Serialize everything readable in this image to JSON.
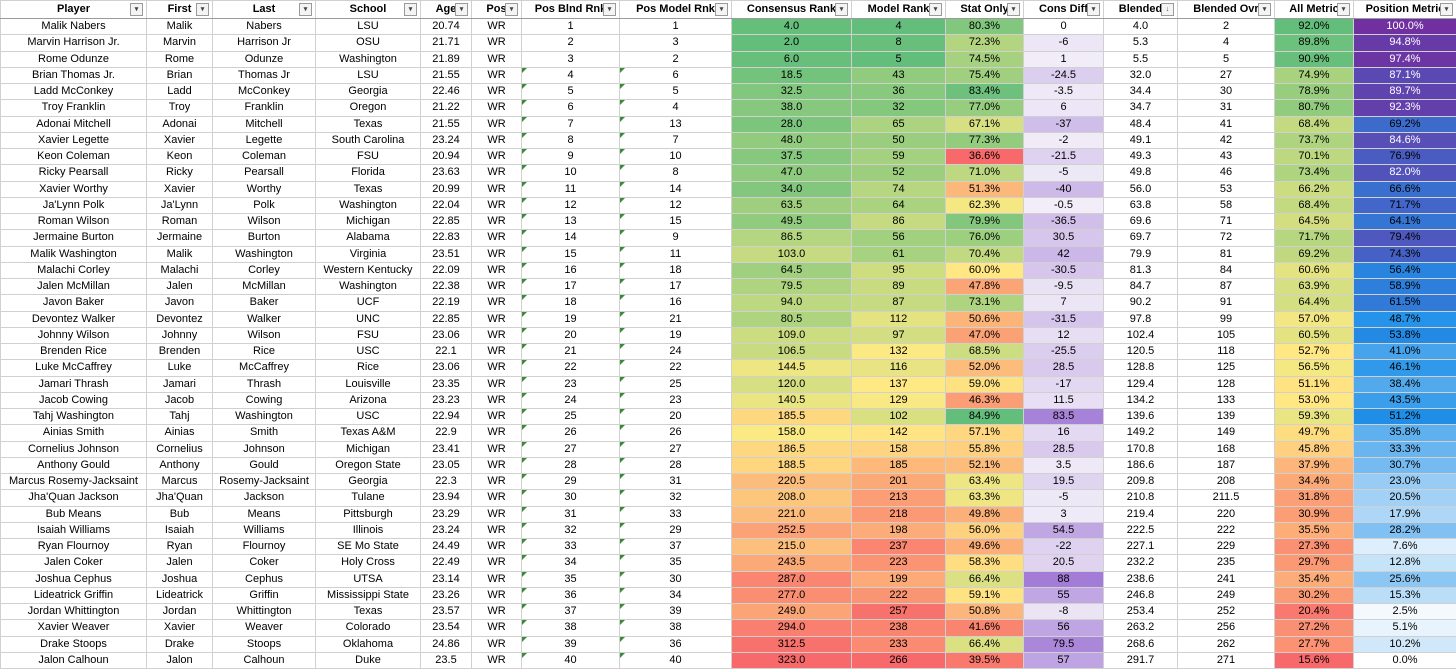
{
  "columns": [
    {
      "key": "player",
      "label": "Player"
    },
    {
      "key": "first",
      "label": "First"
    },
    {
      "key": "last",
      "label": "Last"
    },
    {
      "key": "school",
      "label": "School"
    },
    {
      "key": "age",
      "label": "Age"
    },
    {
      "key": "pos",
      "label": "Pos"
    },
    {
      "key": "pos_blnd_rnk",
      "label": "Pos Blnd Rnk"
    },
    {
      "key": "pos_model_rnk",
      "label": "Pos Model Rnk"
    },
    {
      "key": "consensus_rank",
      "label": "Consensus Rank"
    },
    {
      "key": "model_rank",
      "label": "Model Rank"
    },
    {
      "key": "stat_only",
      "label": "Stat Only"
    },
    {
      "key": "cons_diff",
      "label": "Cons Diff"
    },
    {
      "key": "blended",
      "label": "Blended"
    },
    {
      "key": "blended_ovr",
      "label": "Blended Ovr"
    },
    {
      "key": "all_metric",
      "label": "All Metric"
    },
    {
      "key": "position_metric",
      "label": "Position Metric"
    }
  ],
  "rows": [
    [
      "Malik Nabers",
      "Malik",
      "Nabers",
      "LSU",
      "20.74",
      "WR",
      "1",
      "1",
      "4.0",
      "4",
      "80.3%",
      "0",
      "4.0",
      "2",
      "92.0%",
      "100.0%"
    ],
    [
      "Marvin Harrison Jr.",
      "Marvin",
      "Harrison Jr",
      "OSU",
      "21.71",
      "WR",
      "2",
      "3",
      "2.0",
      "8",
      "72.3%",
      "-6",
      "5.3",
      "4",
      "89.8%",
      "94.8%"
    ],
    [
      "Rome Odunze",
      "Rome",
      "Odunze",
      "Washington",
      "21.89",
      "WR",
      "3",
      "2",
      "6.0",
      "5",
      "74.5%",
      "1",
      "5.5",
      "5",
      "90.9%",
      "97.4%"
    ],
    [
      "Brian Thomas Jr.",
      "Brian",
      "Thomas Jr",
      "LSU",
      "21.55",
      "WR",
      "4",
      "6",
      "18.5",
      "43",
      "75.4%",
      "-24.5",
      "32.0",
      "27",
      "74.9%",
      "87.1%"
    ],
    [
      "Ladd McConkey",
      "Ladd",
      "McConkey",
      "Georgia",
      "22.46",
      "WR",
      "5",
      "5",
      "32.5",
      "36",
      "83.4%",
      "-3.5",
      "34.4",
      "30",
      "78.9%",
      "89.7%"
    ],
    [
      "Troy Franklin",
      "Troy",
      "Franklin",
      "Oregon",
      "21.22",
      "WR",
      "6",
      "4",
      "38.0",
      "32",
      "77.0%",
      "6",
      "34.7",
      "31",
      "80.7%",
      "92.3%"
    ],
    [
      "Adonai Mitchell",
      "Adonai",
      "Mitchell",
      "Texas",
      "21.55",
      "WR",
      "7",
      "13",
      "28.0",
      "65",
      "67.1%",
      "-37",
      "48.4",
      "41",
      "68.4%",
      "69.2%"
    ],
    [
      "Xavier Legette",
      "Xavier",
      "Legette",
      "South Carolina",
      "23.24",
      "WR",
      "8",
      "7",
      "48.0",
      "50",
      "77.3%",
      "-2",
      "49.1",
      "42",
      "73.7%",
      "84.6%"
    ],
    [
      "Keon Coleman",
      "Keon",
      "Coleman",
      "FSU",
      "20.94",
      "WR",
      "9",
      "10",
      "37.5",
      "59",
      "36.6%",
      "-21.5",
      "49.3",
      "43",
      "70.1%",
      "76.9%"
    ],
    [
      "Ricky Pearsall",
      "Ricky",
      "Pearsall",
      "Florida",
      "23.63",
      "WR",
      "10",
      "8",
      "47.0",
      "52",
      "71.0%",
      "-5",
      "49.8",
      "46",
      "73.4%",
      "82.0%"
    ],
    [
      "Xavier Worthy",
      "Xavier",
      "Worthy",
      "Texas",
      "20.99",
      "WR",
      "11",
      "14",
      "34.0",
      "74",
      "51.3%",
      "-40",
      "56.0",
      "53",
      "66.2%",
      "66.6%"
    ],
    [
      "Ja'Lynn Polk",
      "Ja'Lynn",
      "Polk",
      "Washington",
      "22.04",
      "WR",
      "12",
      "12",
      "63.5",
      "64",
      "62.3%",
      "-0.5",
      "63.8",
      "58",
      "68.4%",
      "71.7%"
    ],
    [
      "Roman Wilson",
      "Roman",
      "Wilson",
      "Michigan",
      "22.85",
      "WR",
      "13",
      "15",
      "49.5",
      "86",
      "79.9%",
      "-36.5",
      "69.6",
      "71",
      "64.5%",
      "64.1%"
    ],
    [
      "Jermaine Burton",
      "Jermaine",
      "Burton",
      "Alabama",
      "22.83",
      "WR",
      "14",
      "9",
      "86.5",
      "56",
      "76.0%",
      "30.5",
      "69.7",
      "72",
      "71.7%",
      "79.4%"
    ],
    [
      "Malik Washington",
      "Malik",
      "Washington",
      "Virginia",
      "23.51",
      "WR",
      "15",
      "11",
      "103.0",
      "61",
      "70.4%",
      "42",
      "79.9",
      "81",
      "69.2%",
      "74.3%"
    ],
    [
      "Malachi Corley",
      "Malachi",
      "Corley",
      "Western Kentucky",
      "22.09",
      "WR",
      "16",
      "18",
      "64.5",
      "95",
      "60.0%",
      "-30.5",
      "81.3",
      "84",
      "60.6%",
      "56.4%"
    ],
    [
      "Jalen McMillan",
      "Jalen",
      "McMillan",
      "Washington",
      "22.38",
      "WR",
      "17",
      "17",
      "79.5",
      "89",
      "47.8%",
      "-9.5",
      "84.7",
      "87",
      "63.9%",
      "58.9%"
    ],
    [
      "Javon Baker",
      "Javon",
      "Baker",
      "UCF",
      "22.19",
      "WR",
      "18",
      "16",
      "94.0",
      "87",
      "73.1%",
      "7",
      "90.2",
      "91",
      "64.4%",
      "61.5%"
    ],
    [
      "Devontez Walker",
      "Devontez",
      "Walker",
      "UNC",
      "22.85",
      "WR",
      "19",
      "21",
      "80.5",
      "112",
      "50.6%",
      "-31.5",
      "97.8",
      "99",
      "57.0%",
      "48.7%"
    ],
    [
      "Johnny Wilson",
      "Johnny",
      "Wilson",
      "FSU",
      "23.06",
      "WR",
      "20",
      "19",
      "109.0",
      "97",
      "47.0%",
      "12",
      "102.4",
      "105",
      "60.5%",
      "53.8%"
    ],
    [
      "Brenden Rice",
      "Brenden",
      "Rice",
      "USC",
      "22.1",
      "WR",
      "21",
      "24",
      "106.5",
      "132",
      "68.5%",
      "-25.5",
      "120.5",
      "118",
      "52.7%",
      "41.0%"
    ],
    [
      "Luke McCaffrey",
      "Luke",
      "McCaffrey",
      "Rice",
      "23.06",
      "WR",
      "22",
      "22",
      "144.5",
      "116",
      "52.0%",
      "28.5",
      "128.8",
      "125",
      "56.5%",
      "46.1%"
    ],
    [
      "Jamari Thrash",
      "Jamari",
      "Thrash",
      "Louisville",
      "23.35",
      "WR",
      "23",
      "25",
      "120.0",
      "137",
      "59.0%",
      "-17",
      "129.4",
      "128",
      "51.1%",
      "38.4%"
    ],
    [
      "Jacob Cowing",
      "Jacob",
      "Cowing",
      "Arizona",
      "23.23",
      "WR",
      "24",
      "23",
      "140.5",
      "129",
      "46.3%",
      "11.5",
      "134.2",
      "133",
      "53.0%",
      "43.5%"
    ],
    [
      "Tahj Washington",
      "Tahj",
      "Washington",
      "USC",
      "22.94",
      "WR",
      "25",
      "20",
      "185.5",
      "102",
      "84.9%",
      "83.5",
      "139.6",
      "139",
      "59.3%",
      "51.2%"
    ],
    [
      "Ainias Smith",
      "Ainias",
      "Smith",
      "Texas A&M",
      "22.9",
      "WR",
      "26",
      "26",
      "158.0",
      "142",
      "57.1%",
      "16",
      "149.2",
      "149",
      "49.7%",
      "35.8%"
    ],
    [
      "Cornelius Johnson",
      "Cornelius",
      "Johnson",
      "Michigan",
      "23.41",
      "WR",
      "27",
      "27",
      "186.5",
      "158",
      "55.8%",
      "28.5",
      "170.8",
      "168",
      "45.8%",
      "33.3%"
    ],
    [
      "Anthony Gould",
      "Anthony",
      "Gould",
      "Oregon State",
      "23.05",
      "WR",
      "28",
      "28",
      "188.5",
      "185",
      "52.1%",
      "3.5",
      "186.6",
      "187",
      "37.9%",
      "30.7%"
    ],
    [
      "Marcus Rosemy-Jacksaint",
      "Marcus",
      "Rosemy-Jacksaint",
      "Georgia",
      "22.3",
      "WR",
      "29",
      "31",
      "220.5",
      "201",
      "63.4%",
      "19.5",
      "209.8",
      "208",
      "34.4%",
      "23.0%"
    ],
    [
      "Jha'Quan Jackson",
      "Jha'Quan",
      "Jackson",
      "Tulane",
      "23.94",
      "WR",
      "30",
      "32",
      "208.0",
      "213",
      "63.3%",
      "-5",
      "210.8",
      "211.5",
      "31.8%",
      "20.5%"
    ],
    [
      "Bub Means",
      "Bub",
      "Means",
      "Pittsburgh",
      "23.29",
      "WR",
      "31",
      "33",
      "221.0",
      "218",
      "49.8%",
      "3",
      "219.4",
      "220",
      "30.9%",
      "17.9%"
    ],
    [
      "Isaiah Williams",
      "Isaiah",
      "Williams",
      "Illinois",
      "23.24",
      "WR",
      "32",
      "29",
      "252.5",
      "198",
      "56.0%",
      "54.5",
      "222.5",
      "222",
      "35.5%",
      "28.2%"
    ],
    [
      "Ryan Flournoy",
      "Ryan",
      "Flournoy",
      "SE Mo State",
      "24.49",
      "WR",
      "33",
      "37",
      "215.0",
      "237",
      "49.6%",
      "-22",
      "227.1",
      "229",
      "27.3%",
      "7.6%"
    ],
    [
      "Jalen Coker",
      "Jalen",
      "Coker",
      "Holy Cross",
      "22.49",
      "WR",
      "34",
      "35",
      "243.5",
      "223",
      "58.3%",
      "20.5",
      "232.2",
      "235",
      "29.7%",
      "12.8%"
    ],
    [
      "Joshua Cephus",
      "Joshua",
      "Cephus",
      "UTSA",
      "23.14",
      "WR",
      "35",
      "30",
      "287.0",
      "199",
      "66.4%",
      "88",
      "238.6",
      "241",
      "35.4%",
      "25.6%"
    ],
    [
      "Lideatrick Griffin",
      "Lideatrick",
      "Griffin",
      "Mississippi State",
      "23.26",
      "WR",
      "36",
      "34",
      "277.0",
      "222",
      "59.1%",
      "55",
      "246.8",
      "249",
      "30.2%",
      "15.3%"
    ],
    [
      "Jordan Whittington",
      "Jordan",
      "Whittington",
      "Texas",
      "23.57",
      "WR",
      "37",
      "39",
      "249.0",
      "257",
      "50.8%",
      "-8",
      "253.4",
      "252",
      "20.4%",
      "2.5%"
    ],
    [
      "Xavier Weaver",
      "Xavier",
      "Weaver",
      "Colorado",
      "23.54",
      "WR",
      "38",
      "38",
      "294.0",
      "238",
      "41.6%",
      "56",
      "263.2",
      "256",
      "27.2%",
      "5.1%"
    ],
    [
      "Drake Stoops",
      "Drake",
      "Stoops",
      "Oklahoma",
      "24.86",
      "WR",
      "39",
      "36",
      "312.5",
      "233",
      "66.4%",
      "79.5",
      "268.6",
      "262",
      "27.7%",
      "10.2%"
    ],
    [
      "Jalon Calhoun",
      "Jalon",
      "Calhoun",
      "Duke",
      "23.5",
      "WR",
      "40",
      "40",
      "323.0",
      "266",
      "39.5%",
      "57",
      "291.7",
      "271",
      "15.6%",
      "0.0%"
    ]
  ],
  "sort_indicator_column": "blended",
  "colors": {
    "rank_good": "#63be7b",
    "rank_mid": "#ffeb84",
    "rank_bad": "#f8696b",
    "diff_neg": "#f2eef8",
    "diff_pos": "#a27cd6",
    "pos_metric_high": "#7030a0",
    "pos_metric_mid": "#1e90e8",
    "pos_metric_low": "#ffffff"
  }
}
